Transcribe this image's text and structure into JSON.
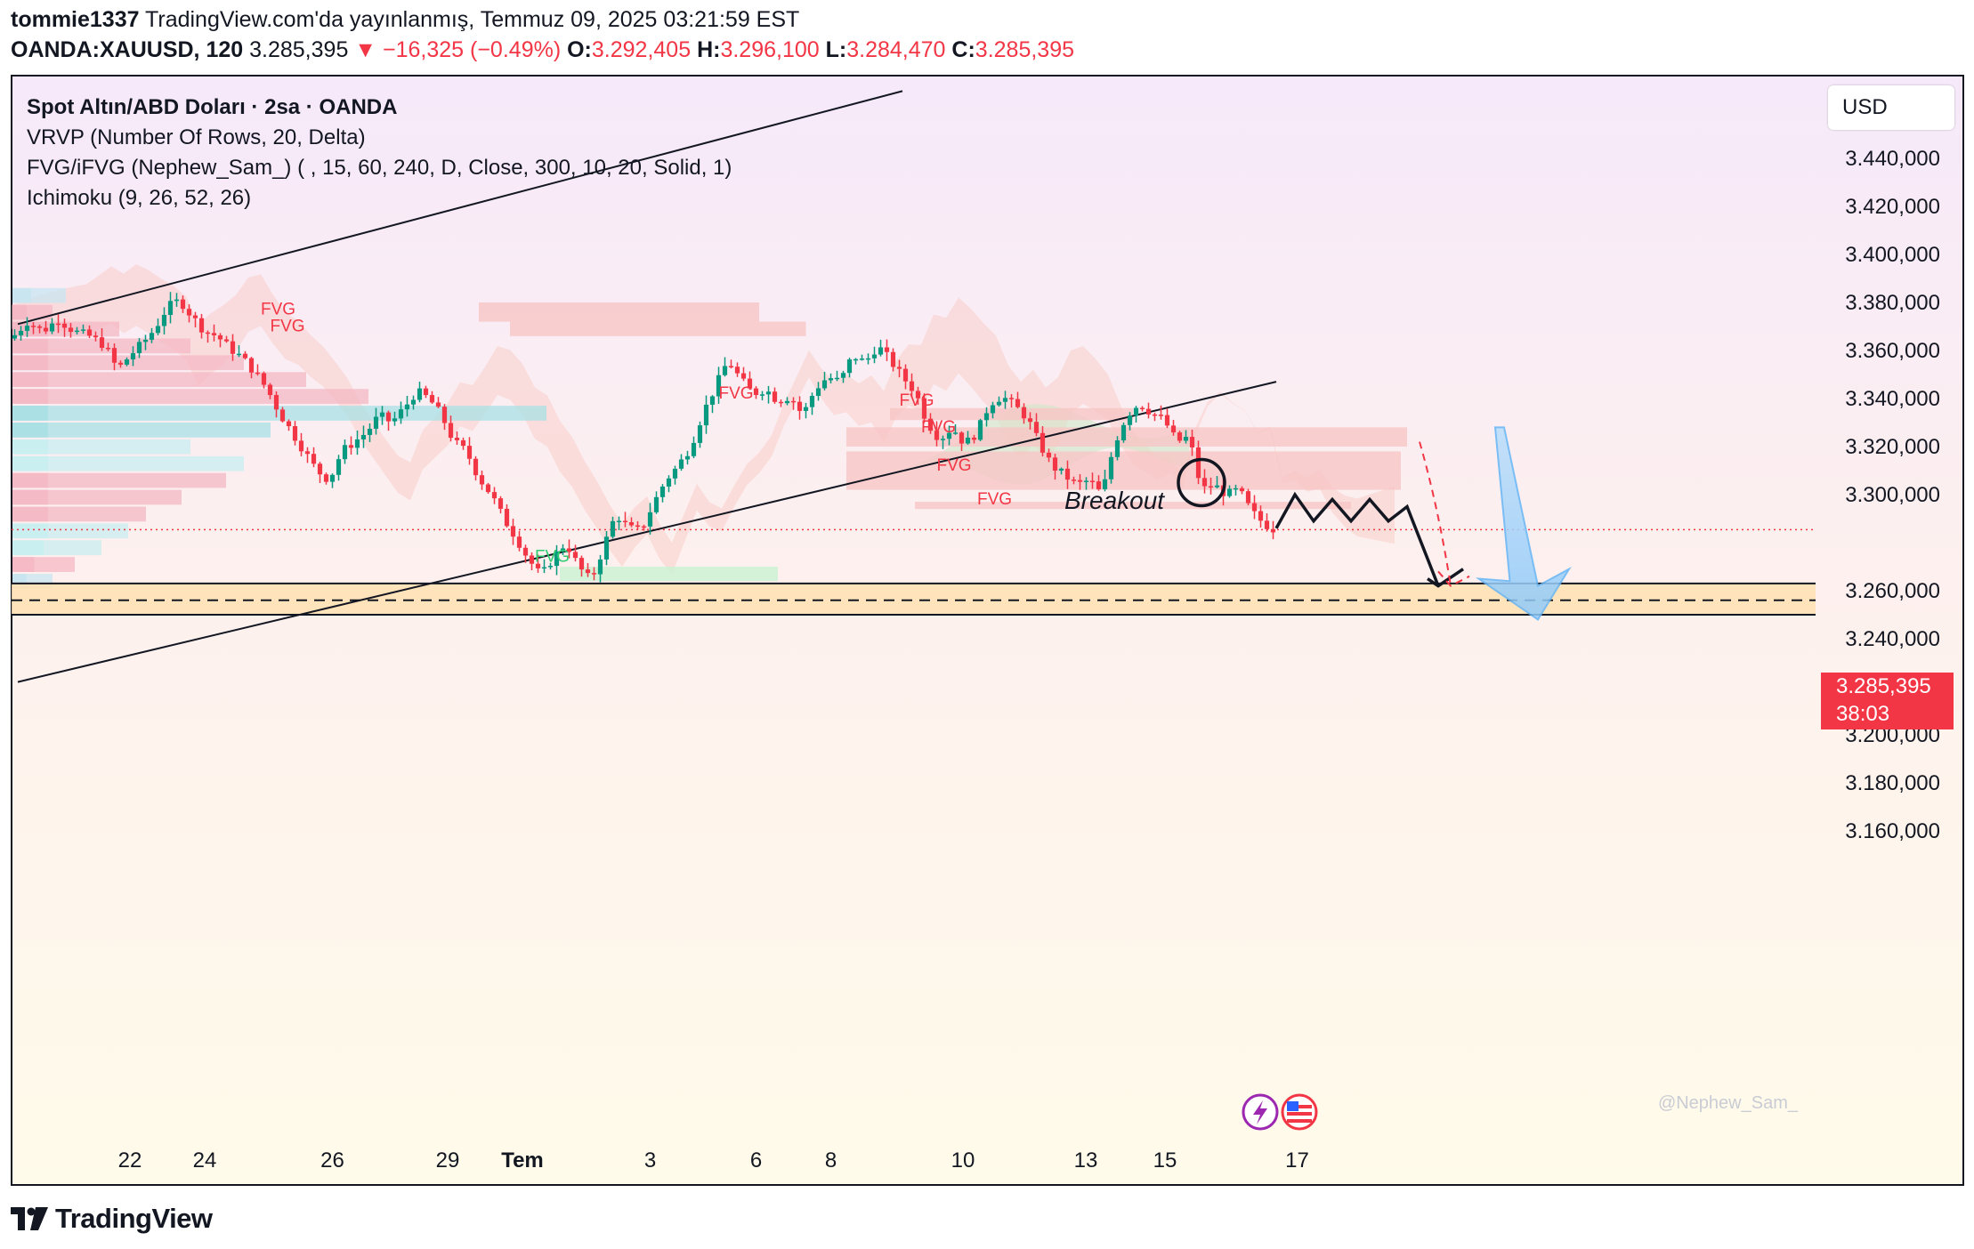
{
  "header": {
    "author": "tommie1337",
    "published": " TradingView.com'da yayınlanmış, Temmuz 09, 2025 03:21:59 EST",
    "symbol": "OANDA:XAUUSD, 120",
    "last": "3.285,395",
    "change": "−16,325 (−0.49%)",
    "o_label": "O:",
    "o": "3.292,405",
    "h_label": "H:",
    "h": "3.296,100",
    "l_label": "L:",
    "l": "3.284,470",
    "c_label": "C:",
    "c": "3.285,395"
  },
  "legend": [
    "Spot Altın/ABD Doları · 2sa · OANDA",
    "VRVP (Number Of Rows, 20, Delta)",
    "FVG/iFVG (Nephew_Sam_) ( , 15, 60, 240, D, Close, 300, 10, 20, Solid, 1)",
    "Ichimoku (9, 26, 52, 26)"
  ],
  "price_axis": {
    "currency": "USD",
    "ticks": [
      "3.440,000",
      "3.420,000",
      "3.400,000",
      "3.380,000",
      "3.360,000",
      "3.340,000",
      "3.320,000",
      "3.300,000",
      "3.260,000",
      "3.240,000",
      "3.220,000",
      "3.200,000",
      "3.180,000",
      "3.160,000"
    ],
    "current_price": "3.285,395",
    "countdown": "38:03"
  },
  "time_axis": {
    "ticks": [
      "22",
      "24",
      "26",
      "29",
      "Tem",
      "3",
      "6",
      "8",
      "10",
      "13",
      "15",
      "17"
    ]
  },
  "annotations": {
    "breakout": "Breakout",
    "fvg": "FVG",
    "watermark": "@Nephew_Sam_"
  },
  "footer": {
    "brand": "TradingView"
  },
  "colors": {
    "up": "#089981",
    "down": "#f23645",
    "support_zone": "#ffe0b2",
    "arrow_blue": "#90caf9",
    "fvg_bear": "#f7c6c6",
    "fvg_bull": "#c8f2d2"
  },
  "chart_data": {
    "type": "candlestick",
    "ylim": [
      3150,
      3460
    ],
    "close_path": [
      [
        0,
        3365
      ],
      [
        5,
        3372
      ],
      [
        10,
        3368
      ],
      [
        15,
        3373
      ],
      [
        20,
        3368
      ],
      [
        25,
        3366
      ],
      [
        30,
        3362
      ],
      [
        34,
        3352
      ],
      [
        38,
        3358
      ],
      [
        42,
        3363
      ],
      [
        46,
        3369
      ],
      [
        50,
        3378
      ],
      [
        54,
        3381
      ],
      [
        58,
        3374
      ],
      [
        62,
        3368
      ],
      [
        66,
        3366
      ],
      [
        70,
        3361
      ],
      [
        74,
        3357
      ],
      [
        78,
        3351
      ],
      [
        82,
        3344
      ],
      [
        86,
        3334
      ],
      [
        90,
        3326
      ],
      [
        94,
        3318
      ],
      [
        98,
        3310
      ],
      [
        102,
        3306
      ],
      [
        106,
        3318
      ],
      [
        110,
        3322
      ],
      [
        114,
        3326
      ],
      [
        118,
        3333
      ],
      [
        122,
        3330
      ],
      [
        126,
        3336
      ],
      [
        130,
        3343
      ],
      [
        134,
        3340
      ],
      [
        138,
        3333
      ],
      [
        142,
        3322
      ],
      [
        146,
        3318
      ],
      [
        150,
        3307
      ],
      [
        154,
        3300
      ],
      [
        158,
        3290
      ],
      [
        162,
        3282
      ],
      [
        166,
        3273
      ],
      [
        170,
        3266
      ],
      [
        174,
        3274
      ],
      [
        178,
        3280
      ],
      [
        182,
        3270
      ],
      [
        186,
        3264
      ],
      [
        190,
        3278
      ],
      [
        194,
        3292
      ],
      [
        198,
        3286
      ],
      [
        202,
        3285
      ],
      [
        206,
        3296
      ],
      [
        210,
        3306
      ],
      [
        214,
        3312
      ],
      [
        218,
        3320
      ],
      [
        222,
        3334
      ],
      [
        226,
        3345
      ],
      [
        230,
        3356
      ],
      [
        234,
        3348
      ],
      [
        238,
        3342
      ],
      [
        242,
        3344
      ],
      [
        246,
        3339
      ],
      [
        250,
        3341
      ],
      [
        254,
        3333
      ],
      [
        258,
        3344
      ],
      [
        262,
        3349
      ],
      [
        266,
        3347
      ],
      [
        270,
        3358
      ],
      [
        274,
        3355
      ],
      [
        278,
        3362
      ],
      [
        282,
        3356
      ],
      [
        286,
        3349
      ],
      [
        290,
        3343
      ],
      [
        294,
        3330
      ],
      [
        298,
        3323
      ],
      [
        302,
        3328
      ],
      [
        306,
        3321
      ],
      [
        310,
        3326
      ],
      [
        314,
        3338
      ],
      [
        318,
        3341
      ],
      [
        322,
        3337
      ],
      [
        326,
        3332
      ],
      [
        330,
        3321
      ],
      [
        334,
        3312
      ],
      [
        338,
        3308
      ],
      [
        342,
        3304
      ],
      [
        346,
        3306
      ],
      [
        350,
        3300
      ],
      [
        354,
        3321
      ],
      [
        358,
        3333
      ],
      [
        362,
        3338
      ],
      [
        366,
        3334
      ],
      [
        370,
        3331
      ],
      [
        374,
        3322
      ],
      [
        378,
        3324
      ],
      [
        382,
        3302
      ],
      [
        386,
        3304
      ],
      [
        390,
        3300
      ],
      [
        394,
        3302
      ],
      [
        398,
        3293
      ],
      [
        402,
        3288
      ],
      [
        406,
        3285
      ]
    ],
    "support_zone": [
      3250,
      3263
    ],
    "support_mid": 3256,
    "current_price": 3285.395,
    "trendlines": [
      {
        "from": [
          2,
          3371
        ],
        "to": [
          286,
          3468
        ]
      },
      {
        "from": [
          2,
          3222
        ],
        "to": [
          406,
          3347
        ]
      }
    ],
    "projection": [
      [
        406,
        3286
      ],
      [
        412,
        3300
      ],
      [
        418,
        3289
      ],
      [
        424,
        3298
      ],
      [
        430,
        3289
      ],
      [
        436,
        3298
      ],
      [
        442,
        3289
      ],
      [
        448,
        3295
      ],
      [
        458,
        3262
      ],
      [
        466,
        3269
      ]
    ],
    "fvg_labels": [
      {
        "x": 80,
        "y": 3375
      },
      {
        "x": 83,
        "y": 3368
      },
      {
        "x": 227,
        "y": 3340
      },
      {
        "x": 168,
        "y": 3272
      },
      {
        "x": 285,
        "y": 3337
      },
      {
        "x": 292,
        "y": 3326
      },
      {
        "x": 297,
        "y": 3310
      },
      {
        "x": 310,
        "y": 3296
      }
    ],
    "candles": 406
  }
}
